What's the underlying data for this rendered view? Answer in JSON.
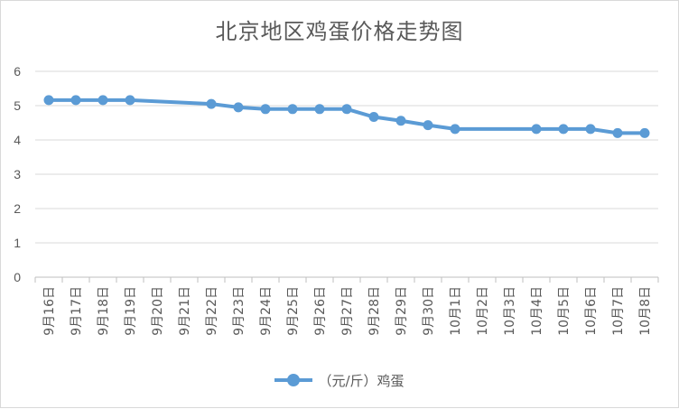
{
  "chart_data": {
    "type": "line",
    "title": "北京地区鸡蛋价格走势图",
    "categories": [
      "9月16日",
      "9月17日",
      "9月18日",
      "9月19日",
      "9月20日",
      "9月21日",
      "9月22日",
      "9月23日",
      "9月24日",
      "9月25日",
      "9月26日",
      "9月27日",
      "9月28日",
      "9月29日",
      "9月30日",
      "10月1日",
      "10月2日",
      "10月3日",
      "10月4日",
      "10月5日",
      "10月6日",
      "10月7日",
      "10月8日"
    ],
    "series": [
      {
        "name": "（元/斤）鸡蛋",
        "values": [
          5.16,
          5.16,
          5.16,
          5.16,
          null,
          null,
          5.05,
          4.95,
          4.9,
          4.9,
          4.9,
          4.9,
          4.67,
          4.56,
          4.43,
          4.32,
          null,
          null,
          4.32,
          4.32,
          4.32,
          4.2,
          4.2
        ],
        "color": "#5b9bd5"
      }
    ],
    "ylim": [
      0,
      6
    ],
    "yticks": [
      0,
      1,
      2,
      3,
      4,
      5,
      6
    ],
    "grid": true,
    "legend": "bottom",
    "gaps": "connected"
  }
}
